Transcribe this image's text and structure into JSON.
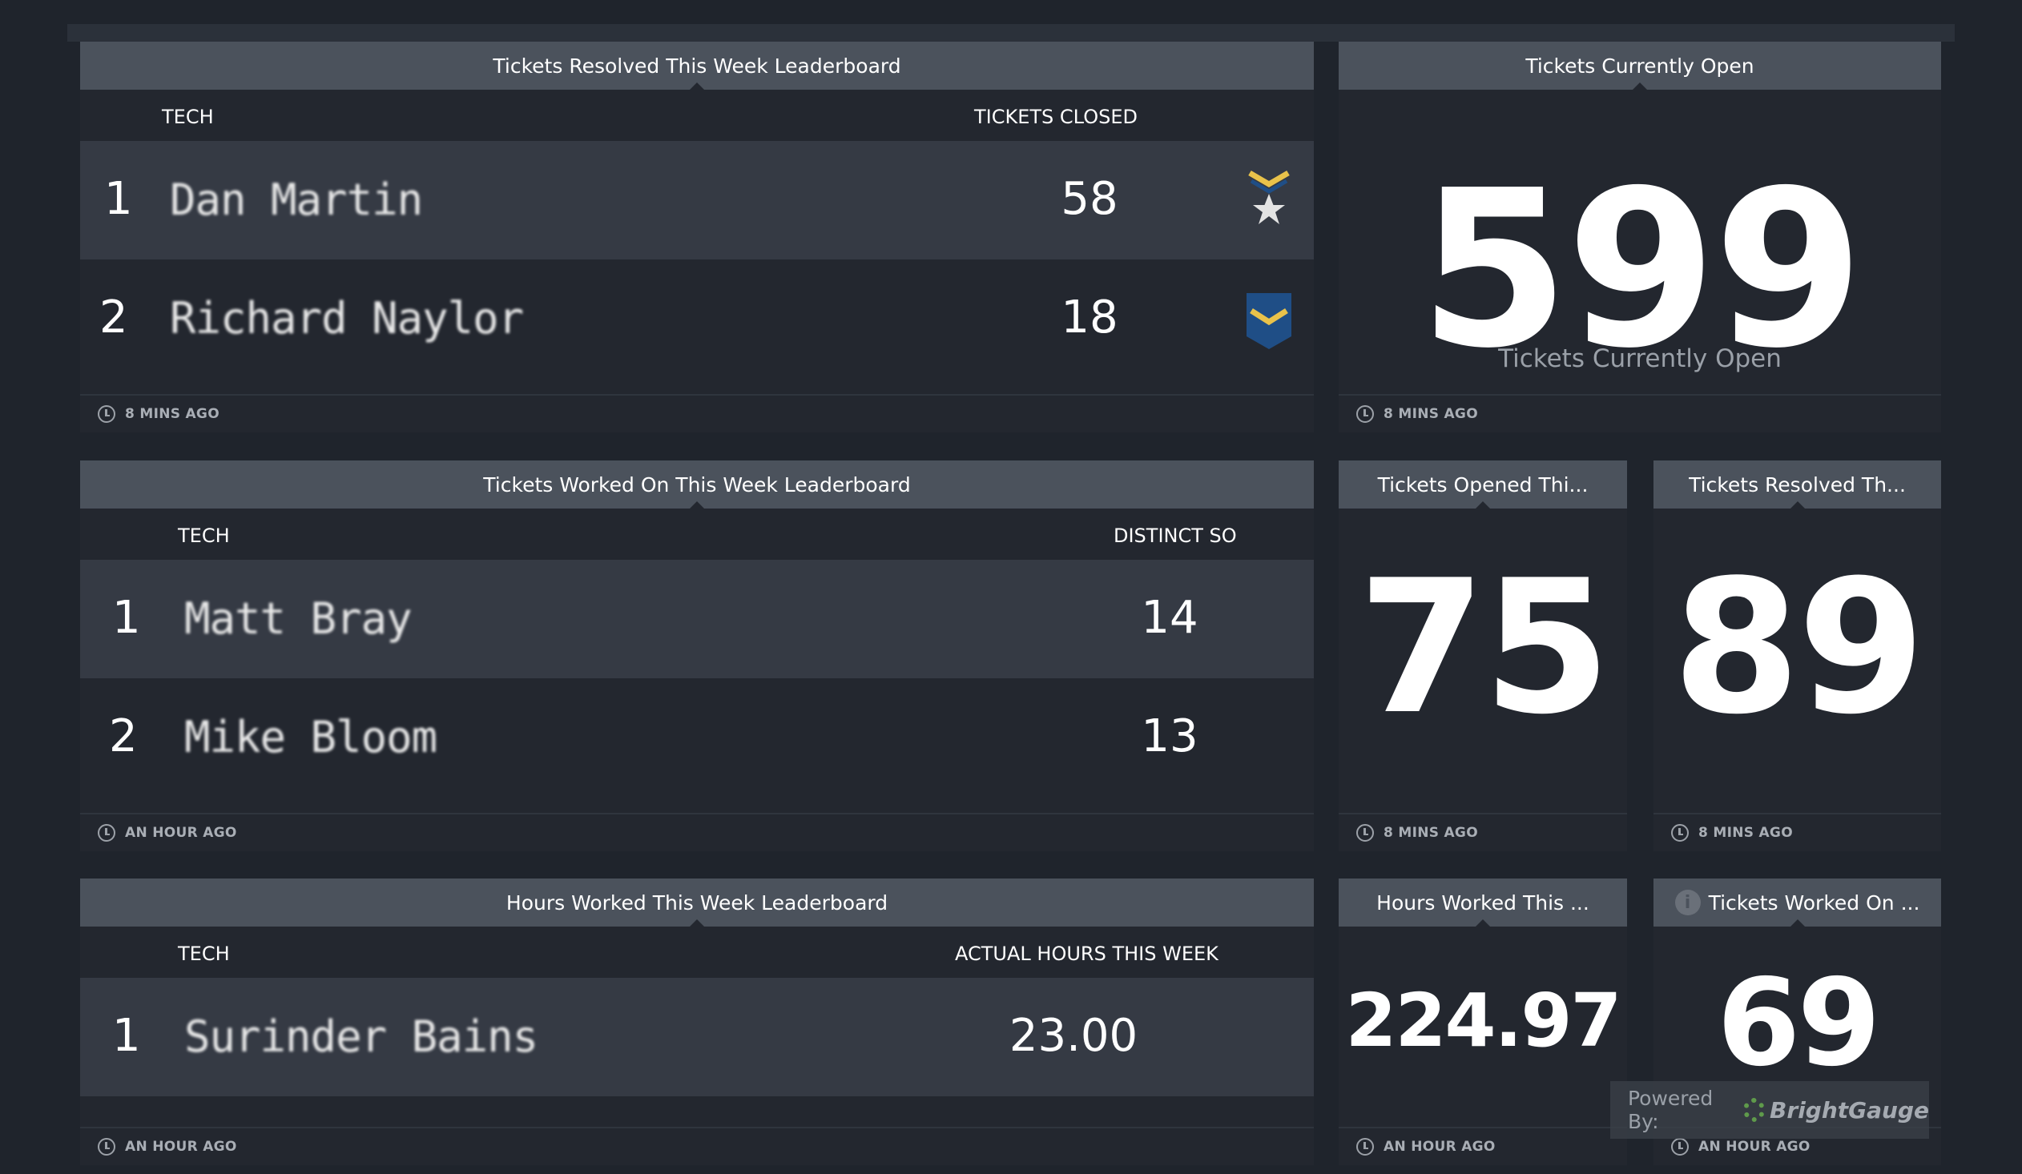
{
  "widgets": {
    "resolved_leaderboard": {
      "title": "Tickets Resolved This Week Leaderboard",
      "col_tech": "TECH",
      "col_value": "TICKETS CLOSED",
      "rows": [
        {
          "rank": "1",
          "name": "Dan Martin",
          "value": "58",
          "badge": "star-chevron-badge-icon"
        },
        {
          "rank": "2",
          "name": "Richard Naylor",
          "value": "18",
          "badge": "chevron-badge-icon"
        }
      ],
      "updated": "8 MINS AGO"
    },
    "currently_open": {
      "title": "Tickets Currently Open",
      "value": "599",
      "label": "Tickets Currently Open",
      "updated": "8 MINS AGO"
    },
    "worked_leaderboard": {
      "title": "Tickets Worked On This Week Leaderboard",
      "col_tech": "TECH",
      "col_value": "DISTINCT SO",
      "rows": [
        {
          "rank": "1",
          "name": "Matt Bray",
          "value": "14"
        },
        {
          "rank": "2",
          "name": "Mike Bloom",
          "value": "13"
        }
      ],
      "updated": "AN HOUR AGO"
    },
    "opened_this": {
      "title": "Tickets Opened Thi...",
      "value": "75",
      "updated": "8 MINS AGO"
    },
    "resolved_this": {
      "title": "Tickets Resolved Th...",
      "value": "89",
      "updated": "8 MINS AGO"
    },
    "hours_leaderboard": {
      "title": "Hours Worked This Week Leaderboard",
      "col_tech": "TECH",
      "col_value": "ACTUAL HOURS THIS WEEK",
      "rows": [
        {
          "rank": "1",
          "name": "Surinder Bains",
          "value": "23.00"
        }
      ],
      "updated": "AN HOUR AGO"
    },
    "hours_worked": {
      "title": "Hours Worked This ...",
      "value": "224.97",
      "updated": "AN HOUR AGO"
    },
    "tickets_worked": {
      "title": "Tickets Worked On ...",
      "value": "69",
      "updated": "AN HOUR AGO"
    }
  },
  "powered_by": {
    "label": "Powered By:",
    "brand": "BrightGauge"
  },
  "colors": {
    "background": "#1f242c",
    "header": "#4b525c",
    "row_light": "#353a44",
    "row_dark": "#23272f",
    "badge_gold": "#e9c24a",
    "badge_blue": "#1f4e86"
  }
}
